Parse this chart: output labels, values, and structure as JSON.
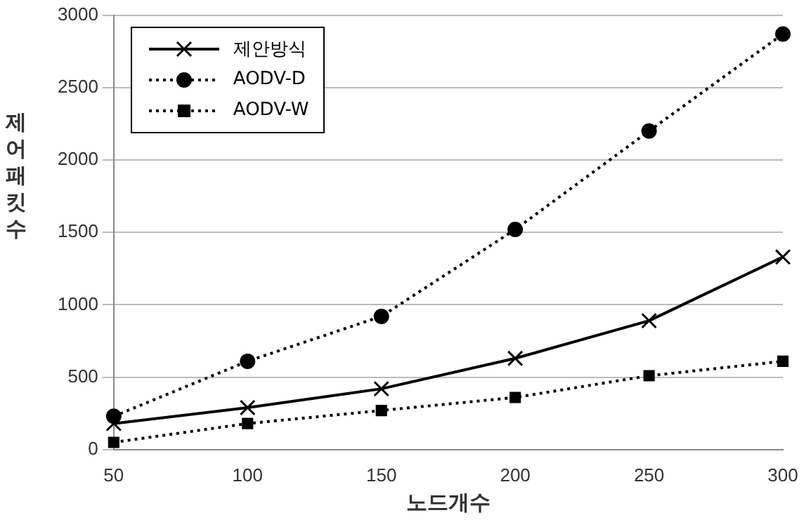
{
  "chart_data": {
    "type": "line",
    "xlabel": "노드개수",
    "ylabel": "제어패킷수",
    "categories": [
      "50",
      "100",
      "150",
      "200",
      "250",
      "300"
    ],
    "series": [
      {
        "name": "제안방식",
        "color": "#000000",
        "marker": "cross",
        "line_style": "solid",
        "values": [
          180,
          290,
          420,
          630,
          890,
          1330
        ]
      },
      {
        "name": "AODV-D",
        "color": "#000000",
        "marker": "circle",
        "line_style": "dotted",
        "values": [
          230,
          610,
          920,
          1520,
          2200,
          2870
        ]
      },
      {
        "name": "AODV-W",
        "color": "#000000",
        "marker": "square",
        "line_style": "dotted",
        "values": [
          50,
          180,
          270,
          360,
          510,
          610
        ]
      }
    ],
    "ylim": [
      0,
      3000
    ],
    "yticks": [
      0,
      500,
      1000,
      1500,
      2000,
      2500,
      3000
    ],
    "grid": "y",
    "legend": "top left"
  }
}
